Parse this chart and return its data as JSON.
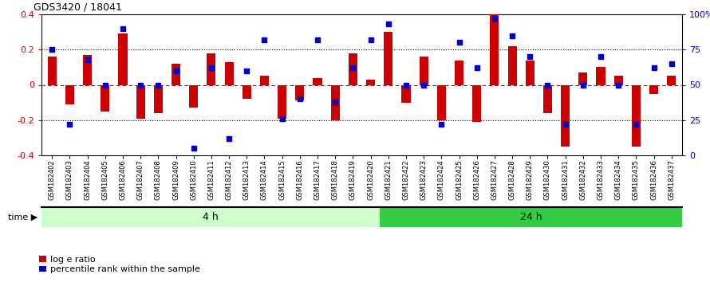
{
  "title": "GDS3420 / 18041",
  "categories": [
    "GSM182402",
    "GSM182403",
    "GSM182404",
    "GSM182405",
    "GSM182406",
    "GSM182407",
    "GSM182408",
    "GSM182409",
    "GSM182410",
    "GSM182411",
    "GSM182412",
    "GSM182413",
    "GSM182414",
    "GSM182415",
    "GSM182416",
    "GSM182417",
    "GSM182418",
    "GSM182419",
    "GSM182420",
    "GSM182421",
    "GSM182422",
    "GSM182423",
    "GSM182424",
    "GSM182425",
    "GSM182426",
    "GSM182427",
    "GSM182428",
    "GSM182429",
    "GSM182430",
    "GSM182431",
    "GSM182432",
    "GSM182433",
    "GSM182434",
    "GSM182435",
    "GSM182436",
    "GSM182437"
  ],
  "log_ratio": [
    0.16,
    -0.11,
    0.17,
    -0.15,
    0.29,
    -0.19,
    -0.16,
    0.12,
    -0.13,
    0.18,
    0.13,
    -0.08,
    0.05,
    -0.19,
    -0.09,
    0.04,
    -0.2,
    0.18,
    0.03,
    0.3,
    -0.1,
    0.16,
    -0.2,
    0.14,
    -0.21,
    0.4,
    0.22,
    0.14,
    -0.16,
    -0.35,
    0.07,
    0.1,
    0.05,
    -0.35,
    -0.05,
    0.05
  ],
  "percentile": [
    75,
    22,
    68,
    50,
    90,
    50,
    50,
    60,
    5,
    62,
    12,
    60,
    82,
    26,
    40,
    82,
    38,
    62,
    82,
    93,
    50,
    50,
    22,
    80,
    62,
    97,
    85,
    70,
    50,
    22,
    50,
    70,
    50,
    22,
    62,
    65
  ],
  "group1_label": "4 h",
  "group2_label": "24 h",
  "group1_count": 19,
  "bar_color": "#CC0000",
  "dot_color": "#0000CC",
  "bg_color": "#FFFFFF",
  "group1_color": "#CCFFCC",
  "group2_color": "#33CC44",
  "ylim_left": [
    -0.4,
    0.4
  ],
  "yticks_left": [
    -0.4,
    -0.2,
    0.0,
    0.2,
    0.4
  ],
  "ytick_labels_left": [
    "-0.4",
    "-0.2",
    "0",
    "0.2",
    "0.4"
  ],
  "yticks_right": [
    0,
    25,
    50,
    75,
    100
  ],
  "ytick_labels_right": [
    "0",
    "25",
    "50",
    "75",
    "100%"
  ],
  "legend_labels": [
    "log e ratio",
    "percentile rank within the sample"
  ]
}
